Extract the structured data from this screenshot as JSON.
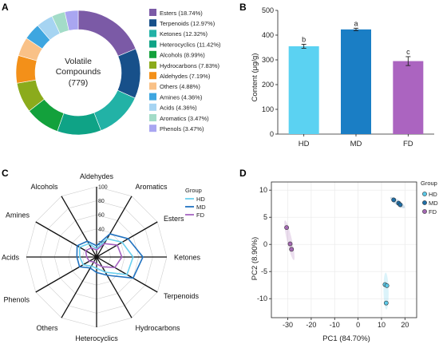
{
  "panels": {
    "a": {
      "label": "A",
      "chart_data": {
        "type": "pie",
        "center_text": [
          "Volatile",
          "Compounds",
          "(779)"
        ],
        "slices": [
          {
            "name": "Esters (18.74%)",
            "value": 18.74,
            "color": "#7b5aa6"
          },
          {
            "name": "Terpenoids (12.97%)",
            "value": 12.97,
            "color": "#17508a"
          },
          {
            "name": "Ketones (12.32%)",
            "value": 12.32,
            "color": "#22b2a6"
          },
          {
            "name": "Heterocyclics (11.42%)",
            "value": 11.42,
            "color": "#0fa386"
          },
          {
            "name": "Alcohols (8.99%)",
            "value": 8.99,
            "color": "#13a13c"
          },
          {
            "name": "Hydrocarbons (7.83%)",
            "value": 7.83,
            "color": "#8bab1c"
          },
          {
            "name": "Aldehydes (7.19%)",
            "value": 7.19,
            "color": "#f39019"
          },
          {
            "name": "Others (4.88%)",
            "value": 4.88,
            "color": "#f9c187"
          },
          {
            "name": "Amines (4.36%)",
            "value": 4.36,
            "color": "#3ea6e0"
          },
          {
            "name": "Acids (4.36%)",
            "value": 4.36,
            "color": "#a6d4f2"
          },
          {
            "name": "Aromatics (3.47%)",
            "value": 3.47,
            "color": "#a3dcc8"
          },
          {
            "name": "Phenols (3.47%)",
            "value": 3.47,
            "color": "#a9a6f1"
          }
        ]
      }
    },
    "b": {
      "label": "B",
      "chart_data": {
        "type": "bar",
        "categories": [
          "HD",
          "MD",
          "FD"
        ],
        "values": [
          355,
          423,
          295
        ],
        "errors": [
          8,
          5,
          18
        ],
        "letters": [
          "b",
          "a",
          "c"
        ],
        "colors": [
          "#5bd2f2",
          "#1a7ec5",
          "#ab64c0"
        ],
        "ylabel": "Content (μg/g)",
        "ylim": [
          0,
          500
        ],
        "yticks": [
          "0",
          "100",
          "200",
          "300",
          "400",
          "500"
        ]
      }
    },
    "c": {
      "label": "C",
      "chart_data": {
        "type": "radar",
        "axes": [
          "Aldehydes",
          "Aromatics",
          "Esters",
          "Ketones",
          "Terpenoids",
          "Hydrocarbons",
          "Heterocyclics",
          "Others",
          "Phenols",
          "Acids",
          "Amines",
          "Alcohols"
        ],
        "rticks": [
          "20",
          "40",
          "60",
          "80",
          "100"
        ],
        "rmax": 100,
        "legend_title": "Group",
        "series": [
          {
            "name": "HD",
            "color": "#6ad0ef",
            "values": [
              12,
              30,
              42,
              52,
              50,
              25,
              16,
              15,
              22,
              24,
              28,
              22
            ]
          },
          {
            "name": "MD",
            "color": "#2273c1",
            "values": [
              16,
              38,
              52,
              66,
              60,
              30,
              22,
              18,
              28,
              28,
              32,
              26
            ]
          },
          {
            "name": "FD",
            "color": "#a564c2",
            "values": [
              10,
              22,
              34,
              36,
              30,
              16,
              10,
              8,
              12,
              14,
              18,
              15
            ]
          }
        ]
      }
    },
    "d": {
      "label": "D",
      "chart_data": {
        "type": "scatter",
        "xlabel": "PC1 (84.70%)",
        "ylabel": "PC2 (8.90%)",
        "xlim": [
          -37,
          25
        ],
        "ylim": [
          -13.5,
          11.5
        ],
        "xticks": [
          "-30",
          "-20",
          "-10",
          "0",
          "10",
          "20"
        ],
        "yticks": [
          "-10",
          "-5",
          "0",
          "5",
          "10"
        ],
        "legend_title": "Group",
        "series": [
          {
            "name": "HD",
            "color": "#5bc9e8",
            "points": [
              [
                11.5,
                -7.4
              ],
              [
                12.3,
                -7.6
              ],
              [
                12.0,
                -10.8
              ]
            ]
          },
          {
            "name": "MD",
            "color": "#1e6fa8",
            "points": [
              [
                15.2,
                8.2
              ],
              [
                17.3,
                7.6
              ],
              [
                18.0,
                7.3
              ]
            ]
          },
          {
            "name": "FD",
            "color": "#a468b3",
            "points": [
              [
                -30.5,
                3.1
              ],
              [
                -29.0,
                0.1
              ],
              [
                -28.4,
                -0.9
              ]
            ]
          }
        ]
      }
    }
  }
}
